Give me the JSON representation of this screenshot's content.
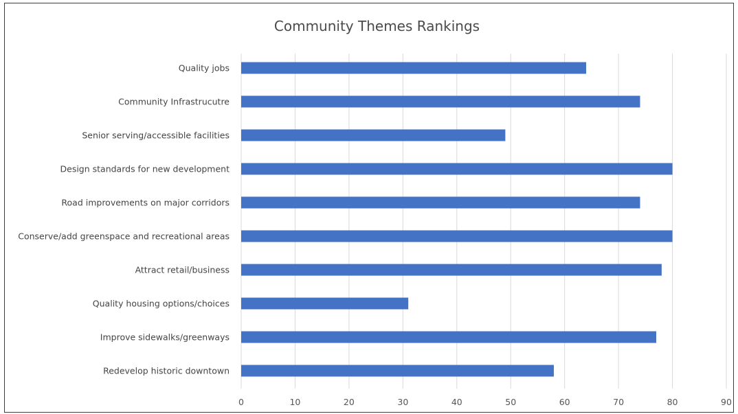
{
  "chart_data": {
    "type": "bar",
    "orientation": "horizontal",
    "title": "Community Themes Rankings",
    "xlabel": "",
    "ylabel": "",
    "categories": [
      "Quality jobs",
      "Community Infrastrucutre",
      "Senior serving/accessible facilities",
      "Design standards for new development",
      "Road improvements on major corridors",
      "Conserve/add greenspace and recreational areas",
      "Attract retail/business",
      "Quality housing options/choices",
      "Improve sidewalks/greenways",
      "Redevelop historic downtown"
    ],
    "values": [
      64,
      74,
      49,
      80,
      74,
      80,
      78,
      31,
      77,
      58
    ],
    "xlim": [
      0,
      90
    ],
    "ticks": [
      "0",
      "10",
      "20",
      "30",
      "40",
      "50",
      "60",
      "70",
      "80",
      "90"
    ],
    "grid": true,
    "legend": "none",
    "bar_color": "#4472c4"
  }
}
